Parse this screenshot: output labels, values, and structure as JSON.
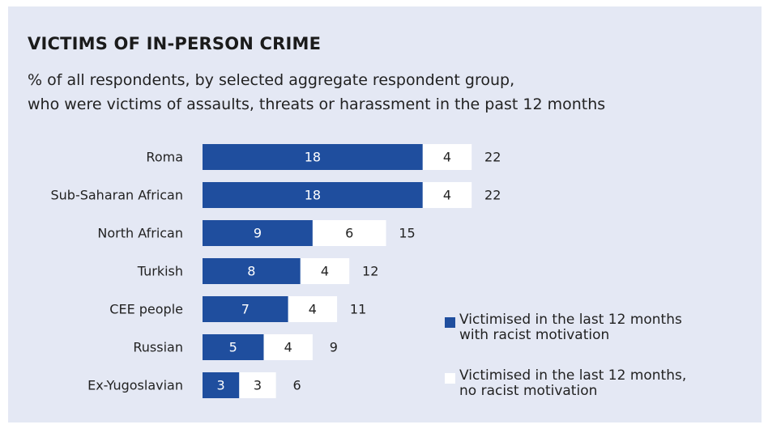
{
  "colors": {
    "panel_bg": "#e4e8f4",
    "racist": "#1f4e9e",
    "non_racist": "#ffffff"
  },
  "header": {
    "title": "VICTIMS OF IN-PERSON CRIME",
    "subtitle_line1": "% of all respondents, by selected aggregate respondent group,",
    "subtitle_line2": "who were victims of assaults, threats or harassment in the past 12 months"
  },
  "legend": {
    "racist": "Victimised in the last 12 months\nwith racist motivation",
    "non_racist": "Victimised in the last 12 months,\nno racist motivation"
  },
  "chart_data": {
    "type": "bar",
    "orientation": "horizontal",
    "stacked": true,
    "categories": [
      "Roma",
      "Sub-Saharan African",
      "North African",
      "Turkish",
      "CEE people",
      "Russian",
      "Ex-Yugoslavian"
    ],
    "series": [
      {
        "name": "Victimised in the last 12 months with racist motivation",
        "values": [
          18,
          18,
          9,
          8,
          7,
          5,
          3
        ]
      },
      {
        "name": "Victimised in the last 12 months, no racist motivation",
        "values": [
          4,
          4,
          6,
          4,
          4,
          4,
          3
        ]
      }
    ],
    "totals": [
      22,
      22,
      15,
      12,
      11,
      9,
      6
    ],
    "legend_position": "right"
  }
}
